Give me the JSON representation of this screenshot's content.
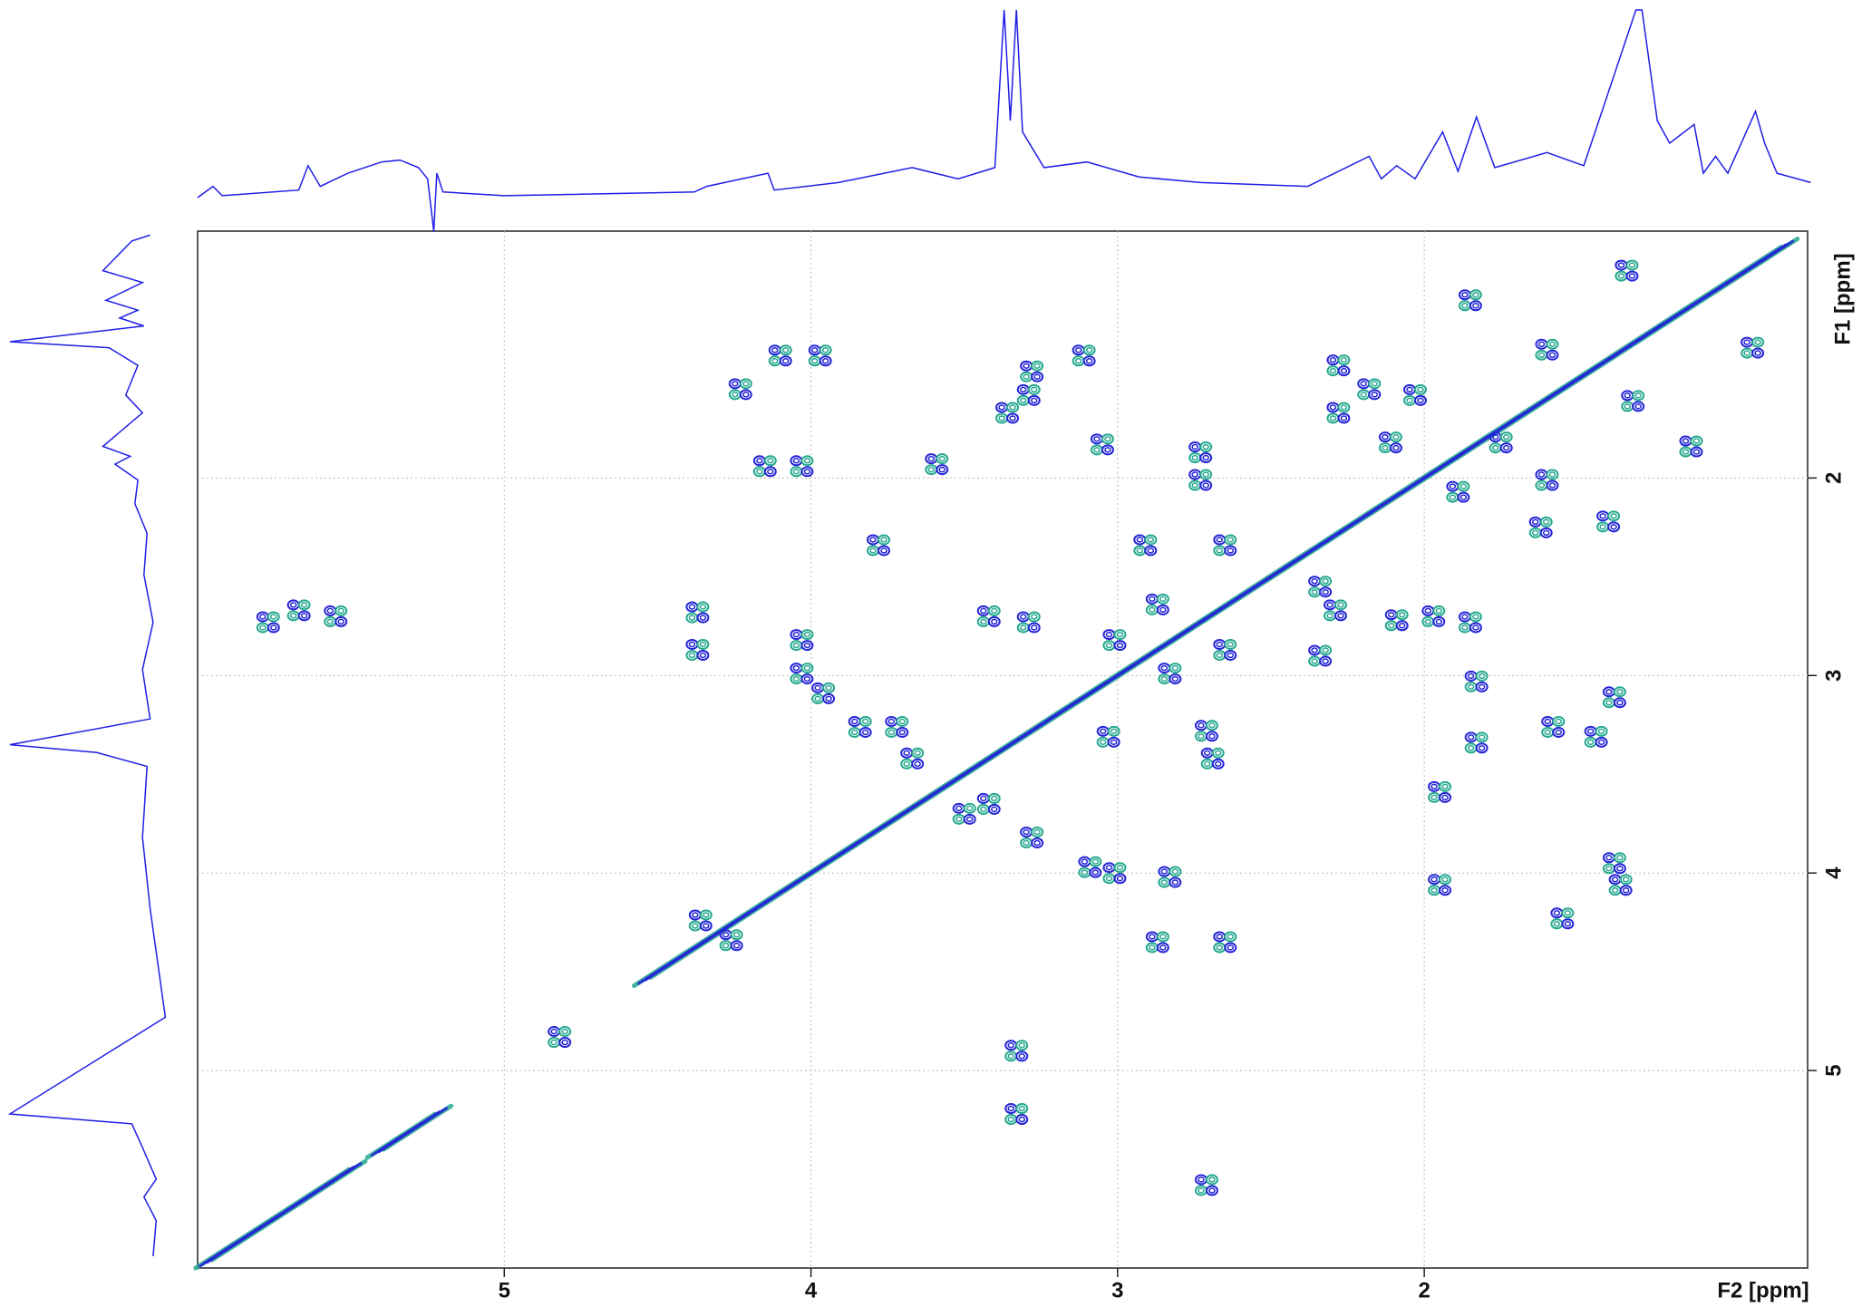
{
  "chart_data": {
    "type": "contour",
    "xlabel": "F2 [ppm]",
    "ylabel": "F1 [ppm]",
    "xlim": [
      6.0,
      0.75
    ],
    "ylim": [
      0.75,
      6.0
    ],
    "xticks": [
      5,
      4,
      3,
      2
    ],
    "yticks": [
      2,
      3,
      4,
      5
    ],
    "grid": true,
    "contour_colors": [
      "#2424d8",
      "#24a88e"
    ],
    "projection_color": "#1f1fe6",
    "diagonal_segments": [
      [
        4.55,
        0.81
      ],
      [
        5.98,
        5.48
      ],
      [
        5.42,
        5.2
      ]
    ],
    "cross_peaks": {
      "x": [
        4.23,
        3.97,
        4.1,
        4.15,
        4.03,
        3.59,
        3.78,
        4.37,
        4.37,
        4.03,
        4.03,
        3.96,
        3.84,
        3.72,
        3.67,
        3.42,
        3.29,
        3.36,
        3.29,
        3.28,
        3.11,
        3.05,
        2.73,
        2.73,
        2.65,
        2.91,
        2.87,
        3.01,
        2.65,
        2.83,
        3.03,
        2.71,
        2.69,
        3.09,
        3.01,
        2.83,
        2.87,
        2.65,
        3.5,
        3.42,
        3.28,
        4.36,
        4.26,
        2.71,
        2.34,
        2.29,
        2.34,
        2.09,
        1.97,
        1.85,
        1.95,
        1.83,
        1.83,
        1.58,
        1.44,
        1.38,
        1.95,
        1.38,
        1.36,
        1.55,
        2.28,
        2.18,
        2.28,
        2.03,
        1.85,
        1.6,
        1.34,
        1.32,
        1.13,
        0.93,
        1.89,
        1.6,
        1.62,
        1.4,
        5.67,
        5.55,
        5.77,
        4.82,
        3.33,
        3.33,
        2.11,
        1.75
      ],
      "y": [
        1.55,
        1.38,
        1.38,
        1.94,
        1.94,
        1.93,
        2.34,
        2.68,
        2.87,
        2.82,
        2.99,
        3.09,
        3.26,
        3.26,
        3.42,
        2.7,
        2.73,
        1.67,
        1.58,
        1.46,
        1.38,
        1.83,
        1.87,
        2.01,
        2.34,
        2.34,
        2.64,
        2.82,
        2.87,
        2.99,
        3.31,
        3.28,
        3.42,
        3.97,
        4.0,
        4.02,
        4.35,
        4.35,
        3.7,
        3.65,
        3.82,
        4.24,
        4.34,
        5.58,
        2.55,
        2.67,
        2.9,
        2.72,
        2.7,
        2.73,
        3.59,
        3.03,
        3.34,
        3.26,
        3.31,
        3.11,
        4.06,
        3.95,
        4.06,
        4.23,
        1.43,
        1.55,
        1.67,
        1.58,
        1.1,
        1.35,
        0.95,
        1.61,
        1.84,
        1.34,
        2.07,
        2.01,
        2.25,
        2.22,
        2.67,
        2.7,
        2.73,
        4.83,
        4.9,
        5.22,
        1.82,
        1.82
      ]
    },
    "f2_projection": {
      "x": [
        6.0,
        5.95,
        5.92,
        5.67,
        5.64,
        5.6,
        5.51,
        5.4,
        5.34,
        5.28,
        5.25,
        5.23,
        5.22,
        5.2,
        5.0,
        4.38,
        4.34,
        4.14,
        4.12,
        3.91,
        3.67,
        3.52,
        3.4,
        3.37,
        3.35,
        3.33,
        3.31,
        3.24,
        3.1,
        2.93,
        2.73,
        2.38,
        2.18,
        2.14,
        2.09,
        2.03,
        1.94,
        1.89,
        1.83,
        1.77,
        1.6,
        1.48,
        1.31,
        1.29,
        1.24,
        1.2,
        1.12,
        1.09,
        1.05,
        1.01,
        0.92,
        0.89,
        0.85,
        0.74
      ],
      "values": [
        0,
        6,
        1,
        4,
        17,
        6,
        13,
        19,
        20,
        16,
        10,
        -18,
        13,
        3,
        1,
        3,
        6,
        13,
        4,
        8,
        16,
        10,
        16,
        100,
        41,
        100,
        35,
        16,
        19,
        11,
        8,
        6,
        22,
        10,
        17,
        10,
        35,
        14,
        43,
        16,
        24,
        17,
        100,
        100,
        41,
        29,
        39,
        13,
        22,
        13,
        46,
        29,
        13,
        8
      ],
      "lim": [
        0,
        100
      ]
    },
    "f1_projection": {
      "y": [
        0.77,
        0.8,
        0.95,
        1.01,
        1.1,
        1.15,
        1.19,
        1.23,
        1.31,
        1.34,
        1.43,
        1.58,
        1.67,
        1.84,
        1.89,
        1.93,
        2.01,
        2.13,
        2.28,
        2.49,
        2.73,
        2.97,
        3.22,
        3.35,
        3.39,
        3.46,
        3.82,
        4.18,
        4.73,
        5.22,
        5.27,
        5.39,
        5.55,
        5.64,
        5.76,
        5.94
      ],
      "values": [
        8,
        20,
        39,
        13,
        37,
        16,
        28,
        12,
        100,
        35,
        16,
        24,
        13,
        39,
        21,
        31,
        16,
        18,
        10,
        12,
        6,
        13,
        8,
        100,
        43,
        10,
        13,
        8,
        -2,
        100,
        20,
        13,
        4,
        12,
        4,
        6
      ],
      "lim": [
        0,
        100
      ]
    }
  }
}
